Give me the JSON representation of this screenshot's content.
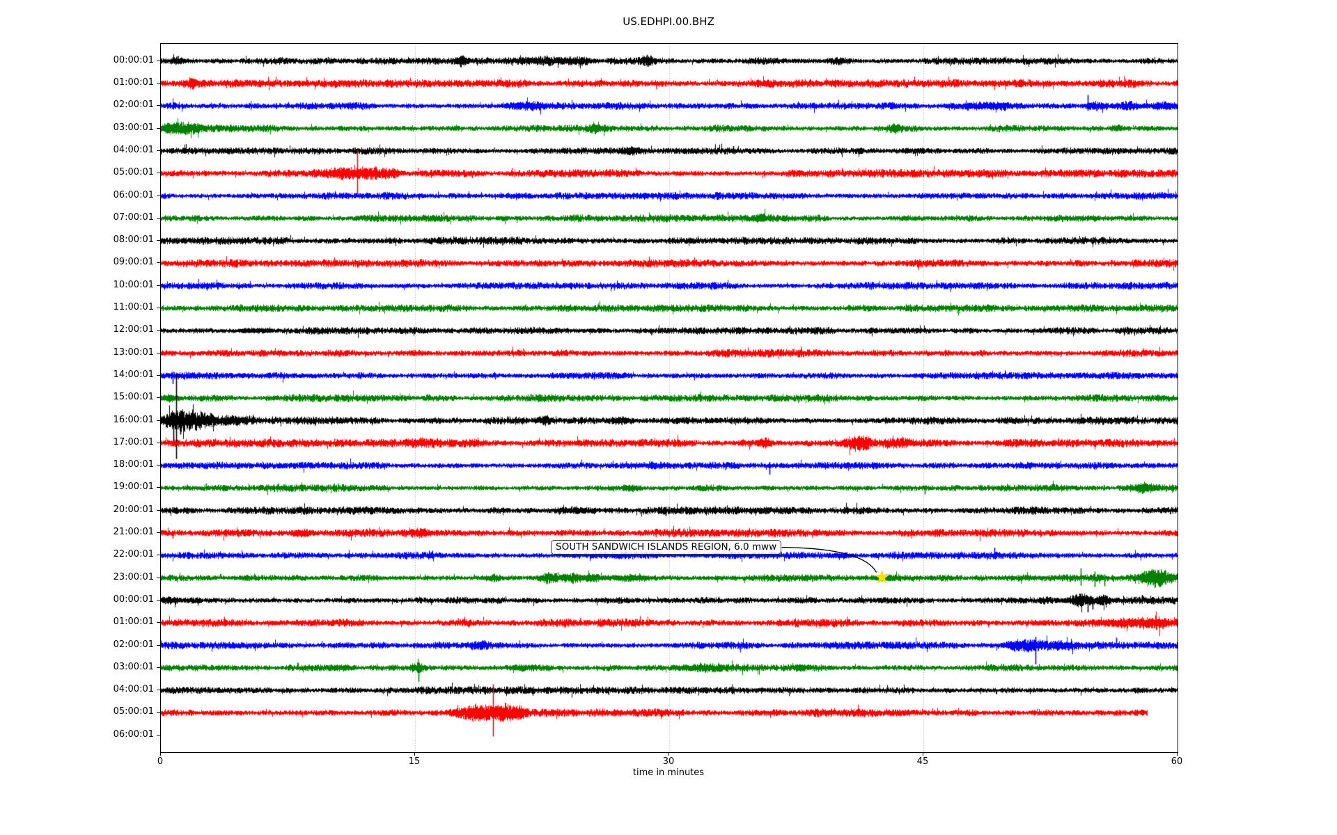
{
  "page": {
    "background": "#ffffff"
  },
  "chart_data": {
    "type": "line",
    "title": "US.EDHPI.00.BHZ",
    "xlabel": "time in minutes",
    "xlim": [
      0,
      60
    ],
    "xticks": [
      0,
      15,
      30,
      45,
      60
    ],
    "grid": {
      "vertical_ticks_minutes": [
        15,
        30,
        45
      ],
      "style": "dotted",
      "color": "#999999"
    },
    "color_cycle": [
      "#000000",
      "#ff0000",
      "#0000ff",
      "#008000"
    ],
    "annotation": {
      "text": "SOUTH SANDWICH ISLANDS REGION, 6.0 mww",
      "marker": "star",
      "marker_color": "#ffdf00",
      "target_row": 23,
      "target_minute": 42.6
    },
    "rows": [
      {
        "label": "00:00:01",
        "color": "#000000",
        "end": 60,
        "base": 3.5,
        "bursts": [
          [
            1.0,
            0.35,
            4
          ],
          [
            17.8,
            0.3,
            5
          ],
          [
            22.6,
            1.4,
            2.5
          ],
          [
            24.6,
            1.0,
            3
          ],
          [
            28.7,
            0.35,
            5
          ],
          [
            39.9,
            0.5,
            3
          ]
        ],
        "spikes": [
          [
            17.8,
            8,
            5
          ],
          [
            28.7,
            9,
            6
          ]
        ]
      },
      {
        "label": "01:00:01",
        "color": "#ff0000",
        "end": 60,
        "base": 4.0,
        "bursts": [
          [
            1.8,
            0.3,
            4
          ]
        ],
        "spikes": [
          [
            1.8,
            7,
            3
          ]
        ]
      },
      {
        "label": "02:00:01",
        "color": "#0000ff",
        "end": 60,
        "base": 3.7,
        "bursts": [
          [
            21.3,
            1.3,
            2.5
          ],
          [
            47.9,
            1.6,
            2.5
          ],
          [
            49.6,
            0.8,
            3
          ],
          [
            55.2,
            0.6,
            4
          ],
          [
            57.1,
            0.9,
            3.5
          ],
          [
            59.0,
            0.9,
            3.5
          ]
        ],
        "spikes": [
          [
            54.7,
            16,
            7
          ]
        ]
      },
      {
        "label": "03:00:01",
        "color": "#008000",
        "end": 60,
        "base": 3.7,
        "bursts": [
          [
            0.8,
            1.0,
            5.5
          ],
          [
            1.9,
            0.7,
            4
          ],
          [
            25.6,
            0.4,
            2.5
          ],
          [
            43.3,
            0.4,
            3.5
          ],
          [
            56.5,
            0.3,
            3
          ]
        ],
        "spikes": [
          [
            0.9,
            9,
            7
          ]
        ]
      },
      {
        "label": "04:00:01",
        "color": "#000000",
        "end": 60,
        "base": 3.4,
        "bursts": [
          [
            27.8,
            0.7,
            2.5
          ],
          [
            45.0,
            1.2,
            1.5
          ]
        ],
        "spikes": [
          [
            33.8,
            7,
            4
          ]
        ]
      },
      {
        "label": "05:00:01",
        "color": "#ff0000",
        "end": 60,
        "base": 4.0,
        "bursts": [
          [
            10.6,
            1.6,
            5
          ],
          [
            12.4,
            0.9,
            5
          ],
          [
            13.6,
            0.6,
            3.5
          ]
        ],
        "spikes": [
          [
            11.6,
            33,
            30
          ]
        ]
      },
      {
        "label": "06:00:01",
        "color": "#0000ff",
        "end": 60,
        "base": 3.6,
        "bursts": [],
        "spikes": []
      },
      {
        "label": "07:00:01",
        "color": "#008000",
        "end": 60,
        "base": 3.6,
        "bursts": [
          [
            35.5,
            0.5,
            2.5
          ]
        ],
        "spikes": []
      },
      {
        "label": "08:00:01",
        "color": "#000000",
        "end": 60,
        "base": 3.9,
        "bursts": [],
        "spikes": []
      },
      {
        "label": "09:00:01",
        "color": "#ff0000",
        "end": 60,
        "base": 4.0,
        "bursts": [],
        "spikes": []
      },
      {
        "label": "10:00:01",
        "color": "#0000ff",
        "end": 60,
        "base": 3.6,
        "bursts": [],
        "spikes": []
      },
      {
        "label": "11:00:01",
        "color": "#008000",
        "end": 60,
        "base": 3.6,
        "bursts": [],
        "spikes": []
      },
      {
        "label": "12:00:01",
        "color": "#000000",
        "end": 60,
        "base": 3.6,
        "bursts": [
          [
            5.5,
            1.2,
            1.5
          ]
        ],
        "spikes": []
      },
      {
        "label": "13:00:01",
        "color": "#ff0000",
        "end": 60,
        "base": 4.0,
        "bursts": [],
        "spikes": []
      },
      {
        "label": "14:00:01",
        "color": "#0000ff",
        "end": 60,
        "base": 3.7,
        "bursts": [],
        "spikes": [
          [
            0.7,
            6,
            12
          ]
        ]
      },
      {
        "label": "15:00:01",
        "color": "#008000",
        "end": 60,
        "base": 3.7,
        "bursts": [
          [
            0.5,
            0.5,
            2.5
          ]
        ],
        "spikes": []
      },
      {
        "label": "16:00:01",
        "color": "#000000",
        "end": 60,
        "base": 3.9,
        "bursts": [
          [
            0.9,
            1.3,
            9
          ],
          [
            2.1,
            1.0,
            6
          ],
          [
            3.8,
            2.0,
            2.5
          ],
          [
            22.7,
            0.5,
            4
          ],
          [
            27.2,
            0.8,
            2.5
          ],
          [
            50.0,
            1.0,
            1.5
          ]
        ],
        "spikes": [
          [
            0.92,
            67,
            55
          ],
          [
            0.75,
            12,
            30
          ],
          [
            1.15,
            14,
            20
          ]
        ]
      },
      {
        "label": "17:00:01",
        "color": "#ff0000",
        "end": 60,
        "base": 4.0,
        "bursts": [
          [
            15.5,
            1.0,
            2
          ],
          [
            35.6,
            0.5,
            4
          ],
          [
            40.9,
            0.8,
            5
          ],
          [
            41.5,
            0.5,
            4
          ],
          [
            43.6,
            0.9,
            3
          ]
        ],
        "spikes": []
      },
      {
        "label": "18:00:01",
        "color": "#0000ff",
        "end": 60,
        "base": 3.6,
        "bursts": [
          [
            29.2,
            1.0,
            1.5
          ]
        ],
        "spikes": [
          [
            35.9,
            5,
            13
          ]
        ]
      },
      {
        "label": "19:00:01",
        "color": "#008000",
        "end": 60,
        "base": 3.6,
        "bursts": [
          [
            27.6,
            0.6,
            2.5
          ],
          [
            58.1,
            0.6,
            3.5
          ]
        ],
        "spikes": [
          [
            45.1,
            4,
            9
          ]
        ]
      },
      {
        "label": "20:00:01",
        "color": "#000000",
        "end": 60,
        "base": 3.9,
        "bursts": [
          [
            24.5,
            1.5,
            2.5
          ],
          [
            36.2,
            2.0,
            1.5
          ]
        ],
        "spikes": [
          [
            29.8,
            5,
            8
          ]
        ]
      },
      {
        "label": "21:00:01",
        "color": "#ff0000",
        "end": 60,
        "base": 4.0,
        "bursts": [
          [
            8.3,
            0.8,
            3
          ],
          [
            15.3,
            0.9,
            2.5
          ]
        ],
        "spikes": [
          [
            0.7,
            3,
            8
          ]
        ]
      },
      {
        "label": "22:00:01",
        "color": "#0000ff",
        "end": 60,
        "base": 3.6,
        "bursts": [
          [
            40.2,
            1.0,
            1.5
          ]
        ],
        "spikes": [
          [
            49.2,
            11,
            5
          ]
        ]
      },
      {
        "label": "23:00:01",
        "color": "#008000",
        "end": 60,
        "base": 3.8,
        "bursts": [
          [
            19.6,
            0.5,
            3
          ],
          [
            22.9,
            0.6,
            5
          ],
          [
            24.3,
            0.5,
            4
          ],
          [
            25.4,
            0.6,
            3.5
          ],
          [
            27.6,
            1.4,
            3
          ],
          [
            42.9,
            1.5,
            1.5
          ],
          [
            58.3,
            0.7,
            6
          ],
          [
            59.1,
            0.7,
            7
          ]
        ],
        "spikes": [
          [
            54.3,
            14,
            11
          ],
          [
            55.1,
            9,
            13
          ],
          [
            55.7,
            5,
            12
          ]
        ]
      },
      {
        "label": "00:00:01",
        "color": "#000000",
        "end": 60,
        "base": 3.6,
        "bursts": [
          [
            0.5,
            0.8,
            2.5
          ],
          [
            54.3,
            0.9,
            7
          ],
          [
            55.7,
            0.5,
            5
          ]
        ],
        "spikes": [
          [
            54.7,
            6,
            17
          ],
          [
            55.0,
            5,
            13
          ],
          [
            57.9,
            8,
            5
          ]
        ]
      },
      {
        "label": "01:00:01",
        "color": "#ff0000",
        "end": 60,
        "base": 4.0,
        "bursts": [
          [
            56.6,
            1.6,
            3.5
          ],
          [
            58.6,
            0.9,
            4
          ]
        ],
        "spikes": []
      },
      {
        "label": "02:00:01",
        "color": "#0000ff",
        "end": 60,
        "base": 3.7,
        "bursts": [
          [
            18.7,
            0.5,
            2.5
          ],
          [
            50.9,
            1.4,
            5
          ],
          [
            53.1,
            1.0,
            2.5
          ]
        ],
        "spikes": [
          [
            51.6,
            12,
            27
          ],
          [
            51.0,
            9,
            5
          ],
          [
            56.4,
            11,
            4
          ]
        ]
      },
      {
        "label": "03:00:01",
        "color": "#008000",
        "end": 60,
        "base": 3.7,
        "bursts": [
          [
            10.6,
            0.8,
            2.5
          ],
          [
            15.1,
            0.4,
            5
          ],
          [
            21.2,
            1.0,
            1.5
          ],
          [
            32.0,
            1.5,
            1.5
          ]
        ],
        "spikes": [
          [
            15.2,
            8,
            20
          ]
        ]
      },
      {
        "label": "04:00:01",
        "color": "#000000",
        "end": 60,
        "base": 3.7,
        "bursts": [],
        "spikes": []
      },
      {
        "label": "05:00:01",
        "color": "#ff0000",
        "end": 58.2,
        "base": 4.0,
        "bursts": [
          [
            17.6,
            0.9,
            3.5
          ],
          [
            18.9,
            1.1,
            8
          ],
          [
            20.3,
            0.8,
            7
          ],
          [
            21.1,
            0.6,
            4
          ]
        ],
        "spikes": [
          [
            19.6,
            41,
            34
          ]
        ]
      },
      {
        "label": "06:00:01",
        "color": "#0000ff",
        "end": 0,
        "base": 3.6,
        "bursts": [],
        "spikes": []
      }
    ]
  }
}
